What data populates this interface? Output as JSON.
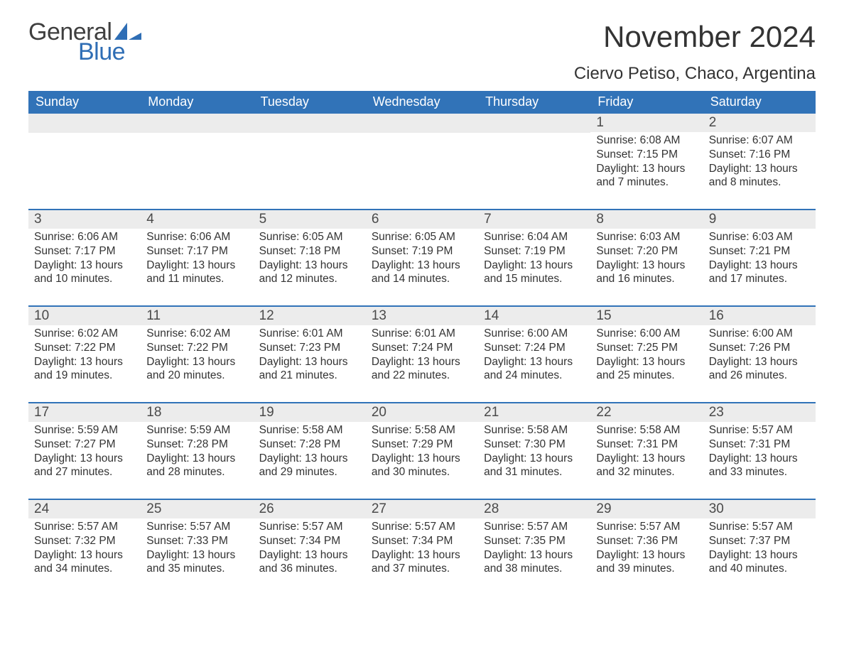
{
  "brand": {
    "word1": "General",
    "word2": "Blue"
  },
  "colors": {
    "header_bg": "#3173b8",
    "header_text": "#ffffff",
    "band_bg": "#ececec",
    "accent_border": "#3173b8",
    "body_text": "#333333",
    "logo_gray": "#3f3f3f",
    "logo_blue": "#2f6eb5",
    "page_bg": "#ffffff"
  },
  "typography": {
    "month_title_fontsize": 42,
    "location_fontsize": 24,
    "dow_fontsize": 18,
    "daynum_fontsize": 19,
    "body_fontsize": 15.5,
    "font_family": "Segoe UI"
  },
  "header": {
    "month_title": "November 2024",
    "location": "Ciervo Petiso, Chaco, Argentina"
  },
  "days_of_week": [
    "Sunday",
    "Monday",
    "Tuesday",
    "Wednesday",
    "Thursday",
    "Friday",
    "Saturday"
  ],
  "weeks": [
    [
      null,
      null,
      null,
      null,
      null,
      {
        "n": "1",
        "sunrise": "Sunrise: 6:08 AM",
        "sunset": "Sunset: 7:15 PM",
        "daylight": "Daylight: 13 hours and 7 minutes."
      },
      {
        "n": "2",
        "sunrise": "Sunrise: 6:07 AM",
        "sunset": "Sunset: 7:16 PM",
        "daylight": "Daylight: 13 hours and 8 minutes."
      }
    ],
    [
      {
        "n": "3",
        "sunrise": "Sunrise: 6:06 AM",
        "sunset": "Sunset: 7:17 PM",
        "daylight": "Daylight: 13 hours and 10 minutes."
      },
      {
        "n": "4",
        "sunrise": "Sunrise: 6:06 AM",
        "sunset": "Sunset: 7:17 PM",
        "daylight": "Daylight: 13 hours and 11 minutes."
      },
      {
        "n": "5",
        "sunrise": "Sunrise: 6:05 AM",
        "sunset": "Sunset: 7:18 PM",
        "daylight": "Daylight: 13 hours and 12 minutes."
      },
      {
        "n": "6",
        "sunrise": "Sunrise: 6:05 AM",
        "sunset": "Sunset: 7:19 PM",
        "daylight": "Daylight: 13 hours and 14 minutes."
      },
      {
        "n": "7",
        "sunrise": "Sunrise: 6:04 AM",
        "sunset": "Sunset: 7:19 PM",
        "daylight": "Daylight: 13 hours and 15 minutes."
      },
      {
        "n": "8",
        "sunrise": "Sunrise: 6:03 AM",
        "sunset": "Sunset: 7:20 PM",
        "daylight": "Daylight: 13 hours and 16 minutes."
      },
      {
        "n": "9",
        "sunrise": "Sunrise: 6:03 AM",
        "sunset": "Sunset: 7:21 PM",
        "daylight": "Daylight: 13 hours and 17 minutes."
      }
    ],
    [
      {
        "n": "10",
        "sunrise": "Sunrise: 6:02 AM",
        "sunset": "Sunset: 7:22 PM",
        "daylight": "Daylight: 13 hours and 19 minutes."
      },
      {
        "n": "11",
        "sunrise": "Sunrise: 6:02 AM",
        "sunset": "Sunset: 7:22 PM",
        "daylight": "Daylight: 13 hours and 20 minutes."
      },
      {
        "n": "12",
        "sunrise": "Sunrise: 6:01 AM",
        "sunset": "Sunset: 7:23 PM",
        "daylight": "Daylight: 13 hours and 21 minutes."
      },
      {
        "n": "13",
        "sunrise": "Sunrise: 6:01 AM",
        "sunset": "Sunset: 7:24 PM",
        "daylight": "Daylight: 13 hours and 22 minutes."
      },
      {
        "n": "14",
        "sunrise": "Sunrise: 6:00 AM",
        "sunset": "Sunset: 7:24 PM",
        "daylight": "Daylight: 13 hours and 24 minutes."
      },
      {
        "n": "15",
        "sunrise": "Sunrise: 6:00 AM",
        "sunset": "Sunset: 7:25 PM",
        "daylight": "Daylight: 13 hours and 25 minutes."
      },
      {
        "n": "16",
        "sunrise": "Sunrise: 6:00 AM",
        "sunset": "Sunset: 7:26 PM",
        "daylight": "Daylight: 13 hours and 26 minutes."
      }
    ],
    [
      {
        "n": "17",
        "sunrise": "Sunrise: 5:59 AM",
        "sunset": "Sunset: 7:27 PM",
        "daylight": "Daylight: 13 hours and 27 minutes."
      },
      {
        "n": "18",
        "sunrise": "Sunrise: 5:59 AM",
        "sunset": "Sunset: 7:28 PM",
        "daylight": "Daylight: 13 hours and 28 minutes."
      },
      {
        "n": "19",
        "sunrise": "Sunrise: 5:58 AM",
        "sunset": "Sunset: 7:28 PM",
        "daylight": "Daylight: 13 hours and 29 minutes."
      },
      {
        "n": "20",
        "sunrise": "Sunrise: 5:58 AM",
        "sunset": "Sunset: 7:29 PM",
        "daylight": "Daylight: 13 hours and 30 minutes."
      },
      {
        "n": "21",
        "sunrise": "Sunrise: 5:58 AM",
        "sunset": "Sunset: 7:30 PM",
        "daylight": "Daylight: 13 hours and 31 minutes."
      },
      {
        "n": "22",
        "sunrise": "Sunrise: 5:58 AM",
        "sunset": "Sunset: 7:31 PM",
        "daylight": "Daylight: 13 hours and 32 minutes."
      },
      {
        "n": "23",
        "sunrise": "Sunrise: 5:57 AM",
        "sunset": "Sunset: 7:31 PM",
        "daylight": "Daylight: 13 hours and 33 minutes."
      }
    ],
    [
      {
        "n": "24",
        "sunrise": "Sunrise: 5:57 AM",
        "sunset": "Sunset: 7:32 PM",
        "daylight": "Daylight: 13 hours and 34 minutes."
      },
      {
        "n": "25",
        "sunrise": "Sunrise: 5:57 AM",
        "sunset": "Sunset: 7:33 PM",
        "daylight": "Daylight: 13 hours and 35 minutes."
      },
      {
        "n": "26",
        "sunrise": "Sunrise: 5:57 AM",
        "sunset": "Sunset: 7:34 PM",
        "daylight": "Daylight: 13 hours and 36 minutes."
      },
      {
        "n": "27",
        "sunrise": "Sunrise: 5:57 AM",
        "sunset": "Sunset: 7:34 PM",
        "daylight": "Daylight: 13 hours and 37 minutes."
      },
      {
        "n": "28",
        "sunrise": "Sunrise: 5:57 AM",
        "sunset": "Sunset: 7:35 PM",
        "daylight": "Daylight: 13 hours and 38 minutes."
      },
      {
        "n": "29",
        "sunrise": "Sunrise: 5:57 AM",
        "sunset": "Sunset: 7:36 PM",
        "daylight": "Daylight: 13 hours and 39 minutes."
      },
      {
        "n": "30",
        "sunrise": "Sunrise: 5:57 AM",
        "sunset": "Sunset: 7:37 PM",
        "daylight": "Daylight: 13 hours and 40 minutes."
      }
    ]
  ]
}
